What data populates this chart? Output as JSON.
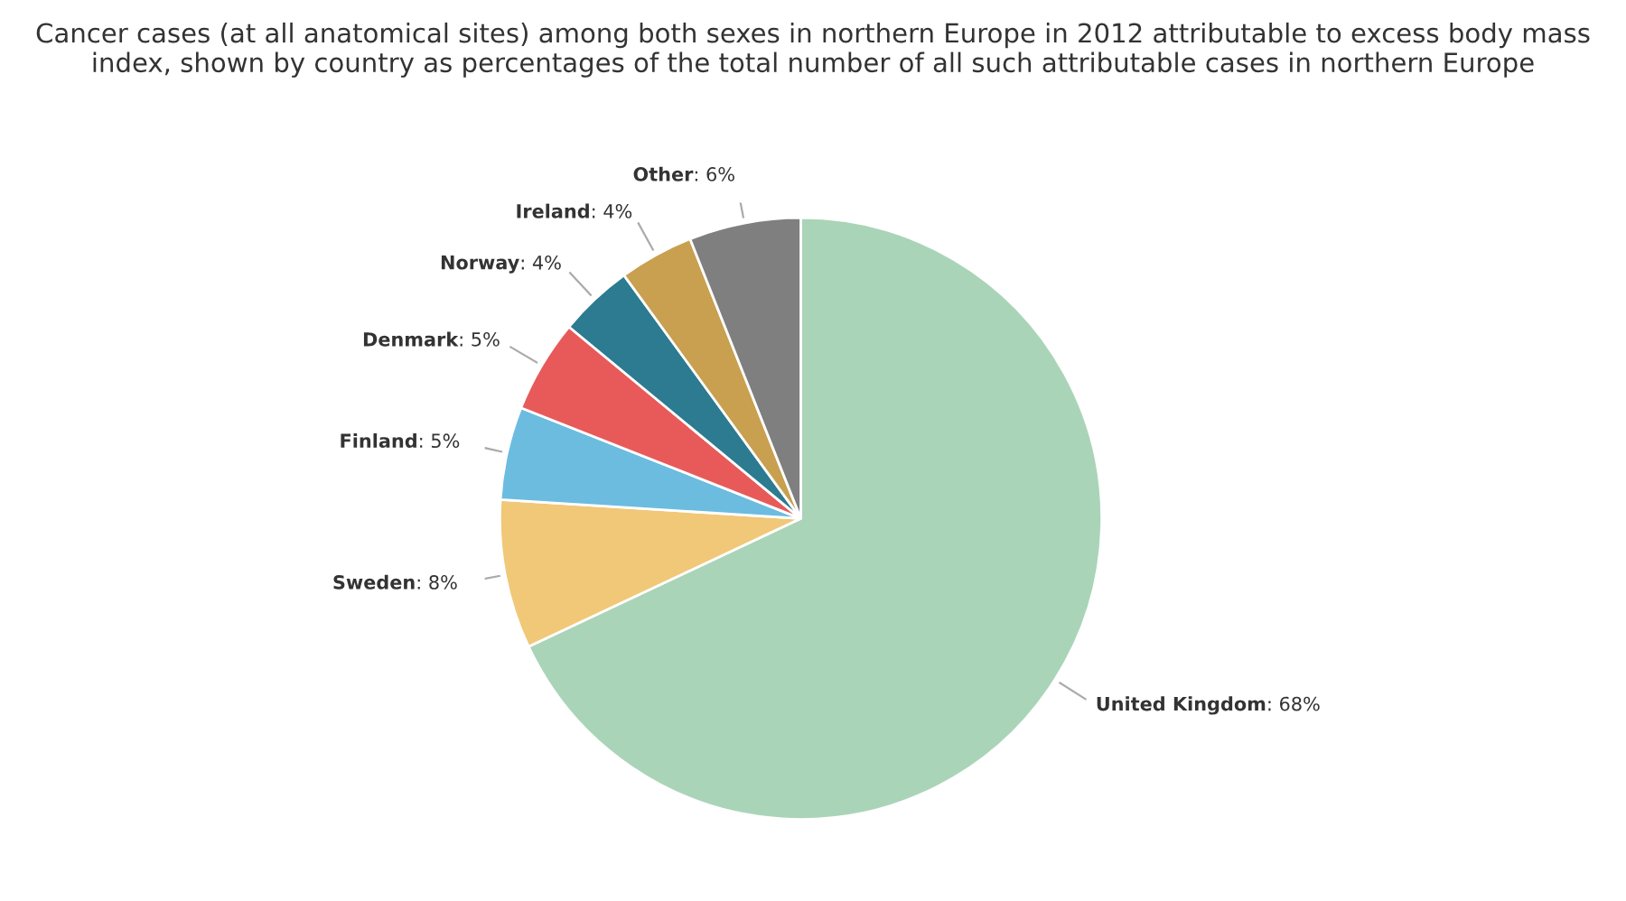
{
  "chart_data": {
    "type": "pie",
    "title": "Cancer cases (at all anatomical sites) among both sexes in northern Europe in 2012 attributable to excess body mass index, shown by country as percentages of the total number of all such attributable cases in northern Europe",
    "categories": [
      "United Kingdom",
      "Sweden",
      "Finland",
      "Denmark",
      "Norway",
      "Ireland",
      "Other"
    ],
    "values": [
      68,
      8,
      5,
      5,
      4,
      4,
      6
    ],
    "value_labels": [
      ": 68%",
      ": 8%",
      ": 5%",
      ": 5%",
      ": 4%",
      ": 4%",
      ": 6%"
    ],
    "colors": [
      "#aad4b8",
      "#f0c878",
      "#6cbce0",
      "#e85a5a",
      "#2c7b90",
      "#c8a050",
      "#7f7f7f"
    ],
    "legend": false
  }
}
